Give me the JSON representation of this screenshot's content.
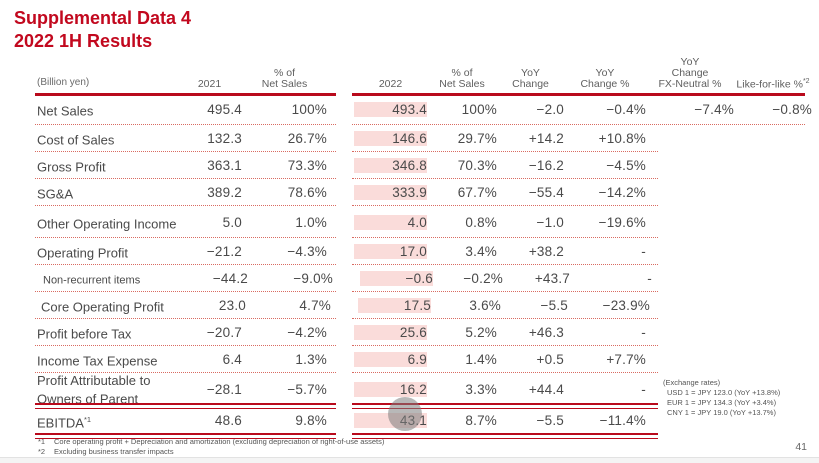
{
  "title": {
    "line1": "Supplemental Data 4",
    "line2": "2022 1H Results"
  },
  "colors": {
    "title_red": "#c2081e",
    "rule_red": "#b90a1c",
    "dotted_red": "#d96b61",
    "highlight_pink": "#fadcda",
    "text_gray": "#4a4a4a"
  },
  "table": {
    "unit_label": "(Billion yen)",
    "header": {
      "y2021": "2021",
      "pct1_l1": "% of",
      "pct1_l2": "Net Sales",
      "y2022": "2022",
      "pct2_l1": "% of",
      "pct2_l2": "Net Sales",
      "yoy_l1": "YoY",
      "yoy_l2": "Change",
      "yoyp_l1": "YoY",
      "yoyp_l2": "Change %",
      "fx_l1": "YoY",
      "fx_l2": "Change",
      "fx_l3": "FX-Neutral %",
      "lfl": "Like-for-like %",
      "lfl_sup": "*2"
    },
    "rows": [
      {
        "label": "Net Sales",
        "v2021": "495.4",
        "p2021": "100%",
        "v2022": "493.4",
        "p2022": "100%",
        "yoy": "−2.0",
        "yoyp": "−0.4%",
        "fx": "−7.4%",
        "lfl": "−0.8%"
      },
      {
        "label": "Cost of Sales",
        "v2021": "132.3",
        "p2021": "26.7%",
        "v2022": "146.6",
        "p2022": "29.7%",
        "yoy": "+14.2",
        "yoyp": "+10.8%",
        "fx": "",
        "lfl": ""
      },
      {
        "label": "Gross Profit",
        "v2021": "363.1",
        "p2021": "73.3%",
        "v2022": "346.8",
        "p2022": "70.3%",
        "yoy": "−16.2",
        "yoyp": "−4.5%",
        "fx": "",
        "lfl": ""
      },
      {
        "label": "SG&A",
        "v2021": "389.2",
        "p2021": "78.6%",
        "v2022": "333.9",
        "p2022": "67.7%",
        "yoy": "−55.4",
        "yoyp": "−14.2%",
        "fx": "",
        "lfl": ""
      },
      {
        "label": "Other Operating Income",
        "v2021": "5.0",
        "p2021": "1.0%",
        "v2022": "4.0",
        "p2022": "0.8%",
        "yoy": "−1.0",
        "yoyp": "−19.6%",
        "fx": "",
        "lfl": ""
      },
      {
        "label": "Operating Profit",
        "v2021": "−21.2",
        "p2021": "−4.3%",
        "v2022": "17.0",
        "p2022": "3.4%",
        "yoy": "+38.2",
        "yoyp": "-",
        "fx": "",
        "lfl": ""
      },
      {
        "label": "Non-recurrent items",
        "v2021": "−44.2",
        "p2021": "−9.0%",
        "v2022": "−0.6",
        "p2022": "−0.2%",
        "yoy": "+43.7",
        "yoyp": "-",
        "fx": "",
        "lfl": ""
      },
      {
        "label": "Core Operating Profit",
        "v2021": "23.0",
        "p2021": "4.7%",
        "v2022": "17.5",
        "p2022": "3.6%",
        "yoy": "−5.5",
        "yoyp": "−23.9%",
        "fx": "",
        "lfl": ""
      },
      {
        "label": "Profit before Tax",
        "v2021": "−20.7",
        "p2021": "−4.2%",
        "v2022": "25.6",
        "p2022": "5.2%",
        "yoy": "+46.3",
        "yoyp": "-",
        "fx": "",
        "lfl": ""
      },
      {
        "label": "Income Tax Expense",
        "v2021": "6.4",
        "p2021": "1.3%",
        "v2022": "6.9",
        "p2022": "1.4%",
        "yoy": "+0.5",
        "yoyp": "+7.7%",
        "fx": "",
        "lfl": ""
      },
      {
        "label": "Profit Attributable to Owners of Parent",
        "v2021": "−28.1",
        "p2021": "−5.7%",
        "v2022": "16.2",
        "p2022": "3.3%",
        "yoy": "+44.4",
        "yoyp": "-",
        "fx": "",
        "lfl": ""
      },
      {
        "label": "EBITDA",
        "label_sup": "*1",
        "v2021": "48.6",
        "p2021": "9.8%",
        "v2022": "43.1",
        "p2022": "8.7%",
        "yoy": "−5.5",
        "yoyp": "−11.4%",
        "fx": "",
        "lfl": ""
      }
    ]
  },
  "exchange_rates": {
    "heading": "(Exchange rates)",
    "lines": [
      "USD 1 = JPY 123.0 (YoY +13.8%)",
      "EUR 1 = JPY 134.3 (YoY +3.4%)",
      "CNY 1 = JPY 19.0 (YoY +13.7%)"
    ]
  },
  "footnotes": [
    {
      "marker": "*1",
      "text": "Core operating profit + Depreciation and amortization (excluding depreciation of right-of-use assets)"
    },
    {
      "marker": "*2",
      "text": "Excluding business transfer impacts"
    }
  ],
  "page_number": "41"
}
